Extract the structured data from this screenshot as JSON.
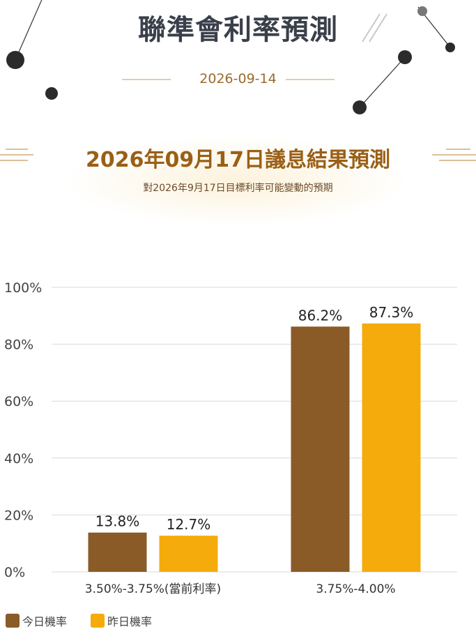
{
  "header": {
    "title": "聯準會利率預測",
    "date": "2026-09-14"
  },
  "section": {
    "title": "2026年09月17日議息結果預測",
    "caption": "對2026年9月17日目標利率可能變動的預期"
  },
  "colors": {
    "today": "#8a5a27",
    "yesterday": "#f5ab0b",
    "accent": "#9a5f16",
    "grid": "#d9d9d9"
  },
  "legend": {
    "today_label": "今日機率",
    "yesterday_label": "昨日機率"
  },
  "chart_data": {
    "type": "bar",
    "title": "",
    "xlabel": "",
    "ylabel": "",
    "categories": [
      "3.50%-3.75%(當前利率)",
      "3.75%-4.00%"
    ],
    "series": [
      {
        "name": "今日機率",
        "values": [
          13.8,
          86.2
        ],
        "labels": [
          "13.8%",
          "86.2%"
        ]
      },
      {
        "name": "昨日機率",
        "values": [
          12.7,
          87.3
        ],
        "labels": [
          "12.7%",
          "87.3%"
        ]
      }
    ],
    "ylim": [
      0,
      100
    ],
    "yticks": [
      "0%",
      "20%",
      "40%",
      "60%",
      "80%",
      "100%"
    ],
    "grid": true,
    "legend_position": "bottom-left"
  }
}
